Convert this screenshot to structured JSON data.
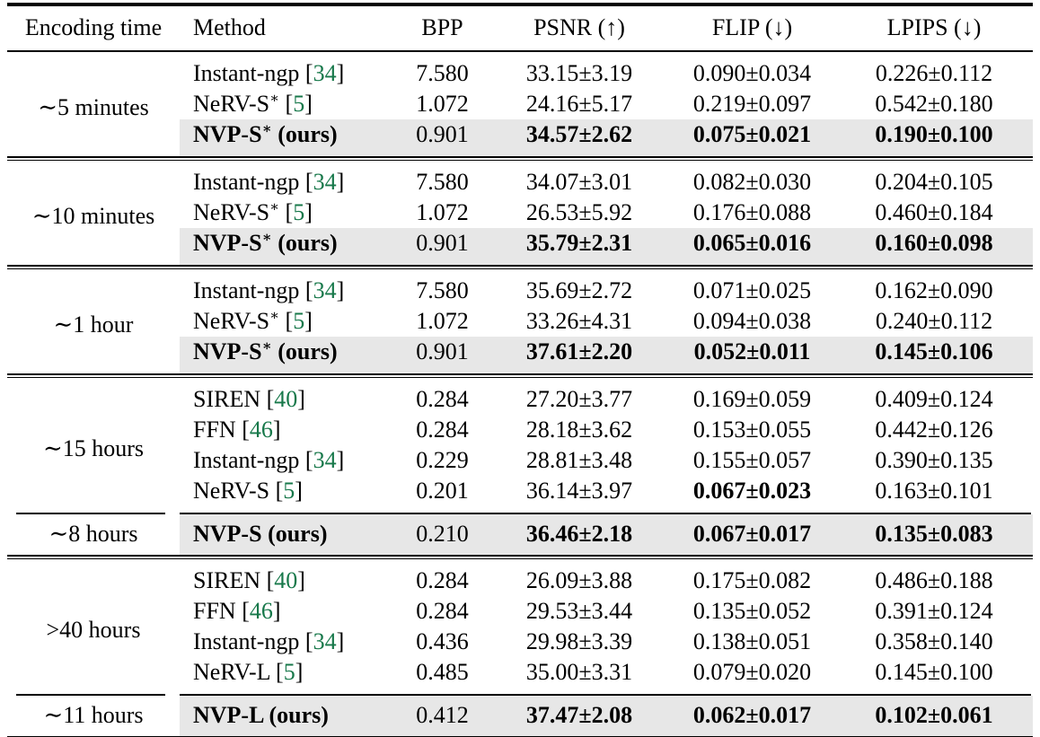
{
  "colors": {
    "citation_green": "#17784a",
    "highlight_gray": "#e7e7e7"
  },
  "table": {
    "headers": [
      "Encoding time",
      "Method",
      "BPP",
      "PSNR (↑)",
      "FLIP (↓)",
      "LPIPS (↓)"
    ],
    "strings": {
      "cite_open": "[",
      "cite_close": "]"
    },
    "groups": [
      {
        "time": "∼5 minutes",
        "rows": [
          {
            "method": "Instant-ngp",
            "sup": "",
            "cite": "34",
            "suffix": "",
            "bold_method": false,
            "highlight": false,
            "bpp": "7.580",
            "psnr": "33.15±3.19",
            "psnr_bold": false,
            "flip": "0.090±0.034",
            "flip_bold": false,
            "lpips": "0.226±0.112",
            "lpips_bold": false
          },
          {
            "method": "NeRV-S",
            "sup": "∗",
            "cite": "5",
            "suffix": "",
            "bold_method": false,
            "highlight": false,
            "bpp": "1.072",
            "psnr": "24.16±5.17",
            "psnr_bold": false,
            "flip": "0.219±0.097",
            "flip_bold": false,
            "lpips": "0.542±0.180",
            "lpips_bold": false
          },
          {
            "method": "NVP-S",
            "sup": "∗",
            "cite": "",
            "suffix": "(ours)",
            "bold_method": true,
            "highlight": true,
            "bpp": "0.901",
            "psnr": "34.57±2.62",
            "psnr_bold": true,
            "flip": "0.075±0.021",
            "flip_bold": true,
            "lpips": "0.190±0.100",
            "lpips_bold": true
          }
        ],
        "sub": null
      },
      {
        "time": "∼10 minutes",
        "rows": [
          {
            "method": "Instant-ngp",
            "sup": "",
            "cite": "34",
            "suffix": "",
            "bold_method": false,
            "highlight": false,
            "bpp": "7.580",
            "psnr": "34.07±3.01",
            "psnr_bold": false,
            "flip": "0.082±0.030",
            "flip_bold": false,
            "lpips": "0.204±0.105",
            "lpips_bold": false
          },
          {
            "method": "NeRV-S",
            "sup": "∗",
            "cite": "5",
            "suffix": "",
            "bold_method": false,
            "highlight": false,
            "bpp": "1.072",
            "psnr": "26.53±5.92",
            "psnr_bold": false,
            "flip": "0.176±0.088",
            "flip_bold": false,
            "lpips": "0.460±0.184",
            "lpips_bold": false
          },
          {
            "method": "NVP-S",
            "sup": "∗",
            "cite": "",
            "suffix": "(ours)",
            "bold_method": true,
            "highlight": true,
            "bpp": "0.901",
            "psnr": "35.79±2.31",
            "psnr_bold": true,
            "flip": "0.065±0.016",
            "flip_bold": true,
            "lpips": "0.160±0.098",
            "lpips_bold": true
          }
        ],
        "sub": null
      },
      {
        "time": "∼1 hour",
        "rows": [
          {
            "method": "Instant-ngp",
            "sup": "",
            "cite": "34",
            "suffix": "",
            "bold_method": false,
            "highlight": false,
            "bpp": "7.580",
            "psnr": "35.69±2.72",
            "psnr_bold": false,
            "flip": "0.071±0.025",
            "flip_bold": false,
            "lpips": "0.162±0.090",
            "lpips_bold": false
          },
          {
            "method": "NeRV-S",
            "sup": "∗",
            "cite": "5",
            "suffix": "",
            "bold_method": false,
            "highlight": false,
            "bpp": "1.072",
            "psnr": "33.26±4.31",
            "psnr_bold": false,
            "flip": "0.094±0.038",
            "flip_bold": false,
            "lpips": "0.240±0.112",
            "lpips_bold": false
          },
          {
            "method": "NVP-S",
            "sup": "∗",
            "cite": "",
            "suffix": "(ours)",
            "bold_method": true,
            "highlight": true,
            "bpp": "0.901",
            "psnr": "37.61±2.20",
            "psnr_bold": true,
            "flip": "0.052±0.011",
            "flip_bold": true,
            "lpips": "0.145±0.106",
            "lpips_bold": true
          }
        ],
        "sub": null
      },
      {
        "time": "∼15 hours",
        "rows": [
          {
            "method": "SIREN",
            "sup": "",
            "cite": "40",
            "suffix": "",
            "bold_method": false,
            "highlight": false,
            "bpp": "0.284",
            "psnr": "27.20±3.77",
            "psnr_bold": false,
            "flip": "0.169±0.059",
            "flip_bold": false,
            "lpips": "0.409±0.124",
            "lpips_bold": false
          },
          {
            "method": "FFN",
            "sup": "",
            "cite": "46",
            "suffix": "",
            "bold_method": false,
            "highlight": false,
            "bpp": "0.284",
            "psnr": "28.18±3.62",
            "psnr_bold": false,
            "flip": "0.153±0.055",
            "flip_bold": false,
            "lpips": "0.442±0.126",
            "lpips_bold": false
          },
          {
            "method": "Instant-ngp",
            "sup": "",
            "cite": "34",
            "suffix": "",
            "bold_method": false,
            "highlight": false,
            "bpp": "0.229",
            "psnr": "28.81±3.48",
            "psnr_bold": false,
            "flip": "0.155±0.057",
            "flip_bold": false,
            "lpips": "0.390±0.135",
            "lpips_bold": false
          },
          {
            "method": "NeRV-S",
            "sup": "",
            "cite": "5",
            "suffix": "",
            "bold_method": false,
            "highlight": false,
            "bpp": "0.201",
            "psnr": "36.14±3.97",
            "psnr_bold": false,
            "flip": "0.067±0.023",
            "flip_bold": true,
            "lpips": "0.163±0.101",
            "lpips_bold": false
          }
        ],
        "sub": {
          "time": "∼8 hours",
          "row": {
            "method": "NVP-S",
            "sup": "",
            "cite": "",
            "suffix": "(ours)",
            "bold_method": true,
            "highlight": true,
            "bpp": "0.210",
            "psnr": "36.46±2.18",
            "psnr_bold": true,
            "flip": "0.067±0.017",
            "flip_bold": true,
            "lpips": "0.135±0.083",
            "lpips_bold": true
          }
        }
      },
      {
        "time": ">40 hours",
        "rows": [
          {
            "method": "SIREN",
            "sup": "",
            "cite": "40",
            "suffix": "",
            "bold_method": false,
            "highlight": false,
            "bpp": "0.284",
            "psnr": "26.09±3.88",
            "psnr_bold": false,
            "flip": "0.175±0.082",
            "flip_bold": false,
            "lpips": "0.486±0.188",
            "lpips_bold": false
          },
          {
            "method": "FFN",
            "sup": "",
            "cite": "46",
            "suffix": "",
            "bold_method": false,
            "highlight": false,
            "bpp": "0.284",
            "psnr": "29.53±3.44",
            "psnr_bold": false,
            "flip": "0.135±0.052",
            "flip_bold": false,
            "lpips": "0.391±0.124",
            "lpips_bold": false
          },
          {
            "method": "Instant-ngp",
            "sup": "",
            "cite": "34",
            "suffix": "",
            "bold_method": false,
            "highlight": false,
            "bpp": "0.436",
            "psnr": "29.98±3.39",
            "psnr_bold": false,
            "flip": "0.138±0.051",
            "flip_bold": false,
            "lpips": "0.358±0.140",
            "lpips_bold": false
          },
          {
            "method": "NeRV-L",
            "sup": "",
            "cite": "5",
            "suffix": "",
            "bold_method": false,
            "highlight": false,
            "bpp": "0.485",
            "psnr": "35.00±3.31",
            "psnr_bold": false,
            "flip": "0.079±0.020",
            "flip_bold": false,
            "lpips": "0.145±0.100",
            "lpips_bold": false
          }
        ],
        "sub": {
          "time": "∼11 hours",
          "row": {
            "method": "NVP-L",
            "sup": "",
            "cite": "",
            "suffix": "(ours)",
            "bold_method": true,
            "highlight": true,
            "bpp": "0.412",
            "psnr": "37.47±2.08",
            "psnr_bold": true,
            "flip": "0.062±0.017",
            "flip_bold": true,
            "lpips": "0.102±0.061",
            "lpips_bold": true
          }
        }
      }
    ]
  }
}
